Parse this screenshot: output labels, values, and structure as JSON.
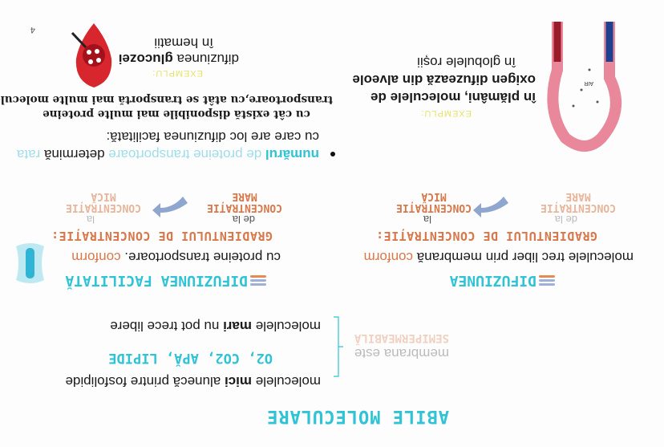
{
  "title": "ABILE MOLECULARE",
  "membrane": {
    "line1": "membrana este",
    "line2": "SEMIPERMEABILĂ"
  },
  "small_molecules": {
    "prefix": "moleculele ",
    "bold": "mici",
    "suffix": " alunecă printre fosfolipide",
    "examples": "O2, CO2, APĂ, LIPIDE"
  },
  "large_molecules": {
    "prefix": "moleculele ",
    "bold": "mari",
    "suffix": " nu pot trece libere"
  },
  "diffusion": {
    "heading": "DIFUZIUNEA",
    "text": "moleculele trec liber prin membrană ",
    "conform": "conform",
    "gradient": "GRADIENTULUI DE CONCENTRAȚIE:",
    "from": "de la",
    "to": "la",
    "high": "CONCENTRAȚIE\nMARE",
    "low": "CONCENTRAȚIE\nMICĂ",
    "example_label": "EXEMPLU:",
    "example_text_1": "în plămâni, moleculele de",
    "example_text_2": "oxigen difuzează din alveole",
    "example_text_3": "în globulele roșii",
    "air_label": "AIR"
  },
  "facilitated": {
    "heading": "DIFUZIUNEA FACILITATĂ",
    "text": "cu proteine transportoare. ",
    "conform": "conform",
    "gradient": "GRADIENTULUI DE CONCENTRAȚIE:",
    "from": "de la",
    "to": "la",
    "high": "CONCENTRAȚIE\nMARE",
    "low": "CONCENTRAȚIE\nMICĂ",
    "bullet_a": "numărul",
    "bullet_b": " de proteine transportoare ",
    "bullet_c": "determină",
    "bullet_d": " rata",
    "bullet_line2": "cu care are loc difuziunea facilitată:",
    "bold_line1": "cu cât există disponibile mai multe proteine",
    "bold_line2": "transportoare,cu atât se transportă mai multe molecule",
    "example_label": "EXEMPLU:",
    "example_pre": "difuziunea ",
    "example_bold": "glucozei",
    "example_line2": "în hematii"
  },
  "page_number": "4",
  "colors": {
    "teal": "#2fc3d6",
    "orange": "#d8784a",
    "arrow": "#8fa6cf",
    "red": "#d8262e",
    "blue": "#1f3f8f"
  }
}
